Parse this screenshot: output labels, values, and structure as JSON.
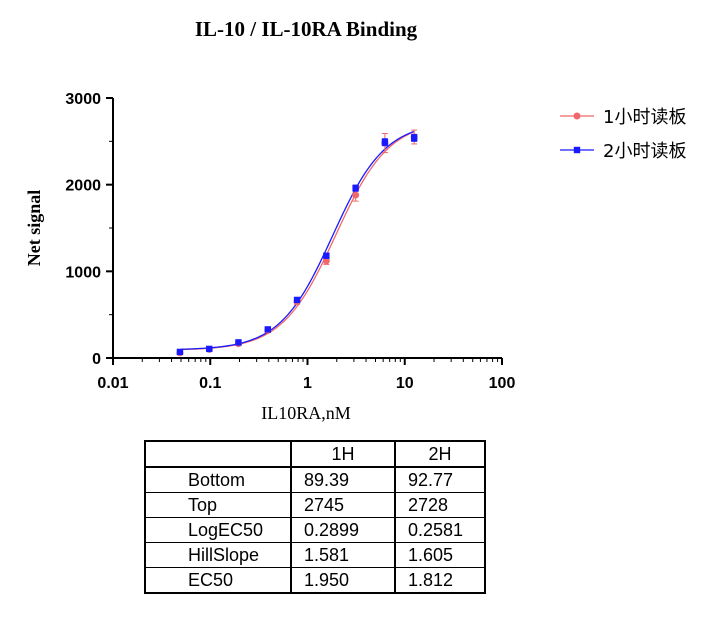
{
  "chart_data": {
    "type": "scatter",
    "title": "IL-10 / IL-10RA Binding",
    "xlabel": "IL10RA,nM",
    "ylabel": "Net signal",
    "x_scale": "log",
    "xlim": [
      0.01,
      100
    ],
    "ylim": [
      0,
      3000
    ],
    "x_ticks": [
      "0.01",
      "0.1",
      "1",
      "10",
      "100"
    ],
    "y_ticks": [
      "0",
      "1000",
      "2000",
      "3000"
    ],
    "legend_position": "top-right",
    "series": [
      {
        "name": "1小时读板",
        "color": "#f0686b",
        "marker": "circle",
        "x": [
          0.0488,
          0.0977,
          0.195,
          0.391,
          0.781,
          1.5625,
          3.125,
          6.25,
          12.5
        ],
        "y": [
          60,
          100,
          165,
          320,
          650,
          1120,
          1880,
          2480,
          2550
        ],
        "err": [
          15,
          15,
          20,
          25,
          30,
          40,
          70,
          110,
          80
        ],
        "fit": {
          "bottom": 89.39,
          "top": 2745,
          "logEC50": 0.2899,
          "hillslope": 1.581
        }
      },
      {
        "name": "2小时读板",
        "color": "#1a1aff",
        "marker": "square",
        "x": [
          0.0488,
          0.0977,
          0.195,
          0.391,
          0.781,
          1.5625,
          3.125,
          6.25,
          12.5
        ],
        "y": [
          70,
          105,
          180,
          330,
          670,
          1180,
          1960,
          2490,
          2540
        ],
        "err": [
          10,
          10,
          15,
          15,
          20,
          25,
          35,
          40,
          40
        ],
        "fit": {
          "bottom": 92.77,
          "top": 2728,
          "logEC50": 0.2581,
          "hillslope": 1.605
        }
      }
    ]
  },
  "table": {
    "columns": [
      "",
      "1H",
      "2H"
    ],
    "rows": [
      {
        "label": "Bottom",
        "v1": "89.39",
        "v2": "92.77"
      },
      {
        "label": "Top",
        "v1": "2745",
        "v2": "2728"
      },
      {
        "label": "LogEC50",
        "v1": "0.2899",
        "v2": "0.2581"
      },
      {
        "label": "HillSlope",
        "v1": "1.581",
        "v2": "1.605"
      },
      {
        "label": "EC50",
        "v1": "1.950",
        "v2": "1.812"
      }
    ]
  }
}
